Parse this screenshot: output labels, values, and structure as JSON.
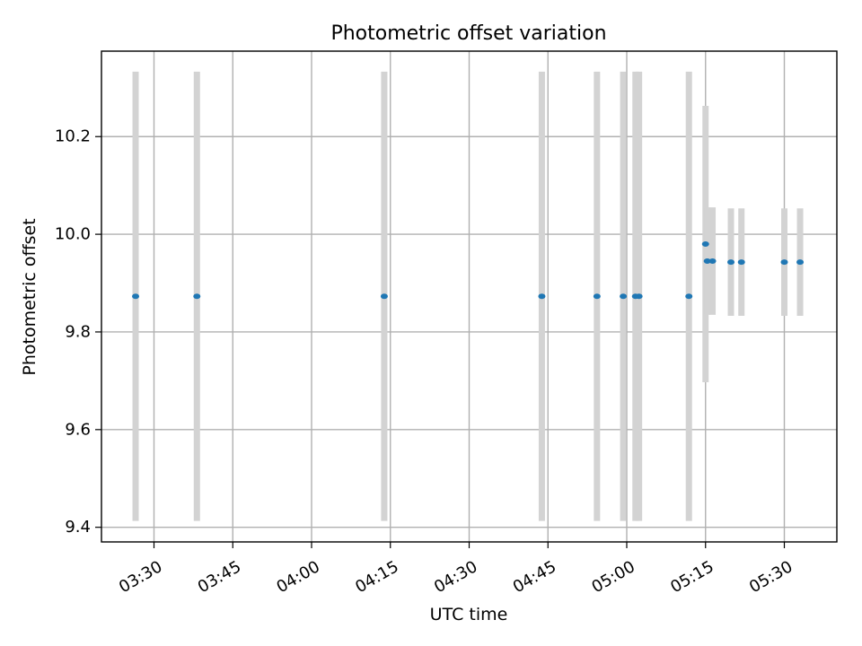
{
  "chart_data": {
    "type": "scatter",
    "title": "Photometric offset variation",
    "xlabel": "UTC time",
    "ylabel": "Photometric offset",
    "x_axis": {
      "unit": "UTC time (HH:MM)",
      "range": [
        "03:20",
        "05:40"
      ],
      "ticks": [
        "03:30",
        "03:45",
        "04:00",
        "04:15",
        "04:30",
        "04:45",
        "05:00",
        "05:15",
        "05:30"
      ],
      "tick_label_rotation_deg": 30
    },
    "y_axis": {
      "range": [
        9.37,
        10.375
      ],
      "ticks": [
        9.4,
        9.6,
        9.8,
        10.0,
        10.2
      ],
      "tick_labels": [
        "9.4",
        "9.6",
        "9.8",
        "10.0",
        "10.2"
      ]
    },
    "grid": true,
    "legend": "none",
    "colors": {
      "points": "#1f77b4",
      "error_bars": "#d3d3d3"
    },
    "series": [
      {
        "points": [
          {
            "time": "03:26:30",
            "value": 9.873,
            "error": 0.46
          },
          {
            "time": "03:38:10",
            "value": 9.873,
            "error": 0.46
          },
          {
            "time": "04:13:50",
            "value": 9.873,
            "error": 0.46
          },
          {
            "time": "04:43:50",
            "value": 9.873,
            "error": 0.46
          },
          {
            "time": "04:54:20",
            "value": 9.873,
            "error": 0.46
          },
          {
            "time": "04:59:20",
            "value": 9.873,
            "error": 0.46
          },
          {
            "time": "05:01:40",
            "value": 9.873,
            "error": 0.46
          },
          {
            "time": "05:02:20",
            "value": 9.873,
            "error": 0.46
          },
          {
            "time": "05:11:50",
            "value": 9.873,
            "error": 0.46
          },
          {
            "time": "05:15:00",
            "value": 9.98,
            "error": 0.283
          },
          {
            "time": "05:15:20",
            "value": 9.945,
            "error": 0.11
          },
          {
            "time": "05:16:20",
            "value": 9.945,
            "error": 0.11
          },
          {
            "time": "05:19:50",
            "value": 9.943,
            "error": 0.11
          },
          {
            "time": "05:21:50",
            "value": 9.943,
            "error": 0.11
          },
          {
            "time": "05:30:00",
            "value": 9.943,
            "error": 0.11
          },
          {
            "time": "05:33:00",
            "value": 9.943,
            "error": 0.11
          }
        ]
      }
    ]
  }
}
